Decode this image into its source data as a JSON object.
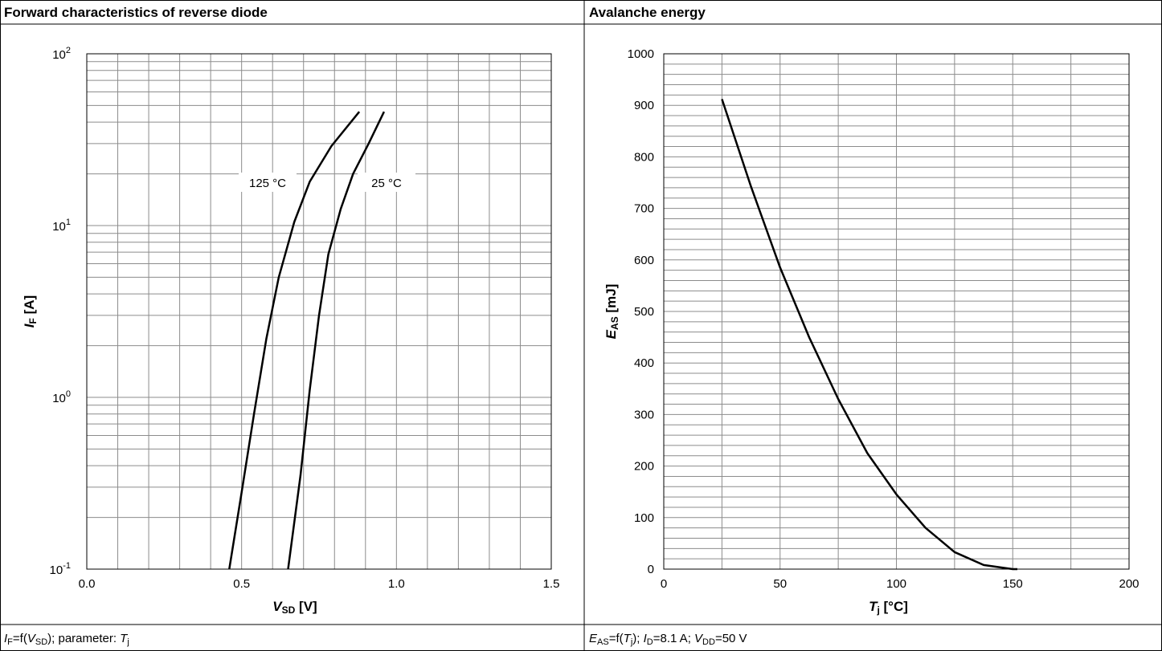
{
  "panels": [
    {
      "title": "Forward characteristics of reverse diode",
      "caption": {
        "parts": [
          {
            "t": "I",
            "i": true
          },
          {
            "t": "F",
            "sub": true
          },
          {
            "t": "=f("
          },
          {
            "t": "V",
            "i": true
          },
          {
            "t": "SD",
            "sub": true
          },
          {
            "t": "); parameter: "
          },
          {
            "t": "T",
            "i": true
          },
          {
            "t": "j",
            "sub": true
          }
        ]
      }
    },
    {
      "title": "Avalanche energy",
      "caption": {
        "parts": [
          {
            "t": "E",
            "i": true
          },
          {
            "t": "AS",
            "sub": true
          },
          {
            "t": "=f("
          },
          {
            "t": "T",
            "i": true
          },
          {
            "t": "j",
            "sub": true
          },
          {
            "t": "); "
          },
          {
            "t": "I",
            "i": true
          },
          {
            "t": "D",
            "sub": true
          },
          {
            "t": "=8.1 A; "
          },
          {
            "t": "V",
            "i": true
          },
          {
            "t": "DD",
            "sub": true
          },
          {
            "t": "=50 V"
          }
        ]
      }
    }
  ],
  "chart_data": [
    {
      "type": "line",
      "title": "Forward characteristics of reverse diode",
      "xlabel": {
        "main": "V",
        "sub": "SD",
        "unit": " [V]"
      },
      "ylabel": {
        "main": "I",
        "sub": "F",
        "unit": " [A]"
      },
      "xlim": [
        0.0,
        1.5
      ],
      "ylim": [
        0.1,
        100
      ],
      "yscale": "log",
      "grid": true,
      "xticks": [
        {
          "v": 0.0,
          "label": "0.0"
        },
        {
          "v": 0.5,
          "label": "0.5"
        },
        {
          "v": 1.0,
          "label": "1.0"
        },
        {
          "v": 1.5,
          "label": "1.5"
        }
      ],
      "yticks": [
        {
          "v": 0.1,
          "base": "10",
          "exp": "-1"
        },
        {
          "v": 1,
          "base": "10",
          "exp": "0"
        },
        {
          "v": 10,
          "base": "10",
          "exp": "1"
        },
        {
          "v": 100,
          "base": "10",
          "exp": "2"
        }
      ],
      "series": [
        {
          "name": "125 °C",
          "x": [
            0.46,
            0.5,
            0.54,
            0.58,
            0.62,
            0.67,
            0.72,
            0.79,
            0.88
          ],
          "y": [
            0.1,
            0.28,
            0.8,
            2.2,
            5.0,
            10.5,
            18.0,
            29.0,
            46.0
          ]
        },
        {
          "name": "25 °C",
          "x": [
            0.65,
            0.69,
            0.72,
            0.75,
            0.78,
            0.82,
            0.86,
            0.91,
            0.96
          ],
          "y": [
            0.1,
            0.35,
            1.1,
            3.0,
            6.8,
            12.5,
            20.0,
            30.0,
            46.0
          ]
        }
      ]
    },
    {
      "type": "line",
      "title": "Avalanche energy",
      "xlabel": {
        "main": "T",
        "sub": "j",
        "unit": " [°C]"
      },
      "ylabel": {
        "main": "E",
        "sub": "AS",
        "unit": " [mJ]"
      },
      "xlim": [
        0,
        200
      ],
      "ylim": [
        0,
        1000
      ],
      "grid": true,
      "xticks": [
        {
          "v": 0,
          "label": "0"
        },
        {
          "v": 50,
          "label": "50"
        },
        {
          "v": 100,
          "label": "100"
        },
        {
          "v": 150,
          "label": "150"
        },
        {
          "v": 200,
          "label": "200"
        }
      ],
      "yticks": [
        {
          "v": 0,
          "label": "0"
        },
        {
          "v": 100,
          "label": "100"
        },
        {
          "v": 200,
          "label": "200"
        },
        {
          "v": 300,
          "label": "300"
        },
        {
          "v": 400,
          "label": "400"
        },
        {
          "v": 500,
          "label": "500"
        },
        {
          "v": 600,
          "label": "600"
        },
        {
          "v": 700,
          "label": "700"
        },
        {
          "v": 800,
          "label": "800"
        },
        {
          "v": 900,
          "label": "900"
        },
        {
          "v": 1000,
          "label": "1000"
        }
      ],
      "series": [
        {
          "x": [
            25,
            37.5,
            50,
            62.5,
            75,
            87.5,
            100,
            112.5,
            125,
            137.5,
            150,
            152
          ],
          "y": [
            912,
            742,
            585,
            450,
            330,
            225,
            145,
            80,
            33,
            8,
            0,
            0
          ]
        }
      ]
    }
  ]
}
